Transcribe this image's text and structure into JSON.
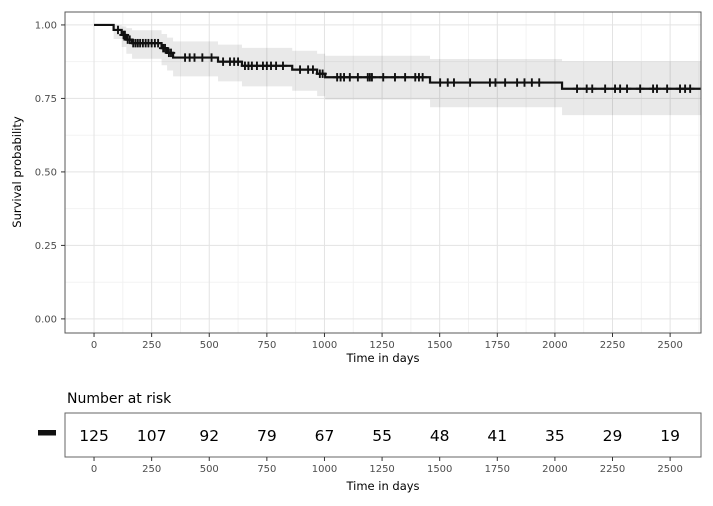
{
  "colors": {
    "curve": "#111111",
    "ci_band": "rgba(0,0,0,0.085)",
    "grid_major": "#e3e3e3",
    "grid_minor": "#f1f1f1",
    "panel_border": "#595959",
    "tick_label": "#4d4d4d",
    "text": "#000000"
  },
  "chart_data": {
    "type": "line",
    "subtype": "kaplan-meier-step",
    "title": "",
    "xlabel": "Time in days",
    "ylabel": "Survival probability",
    "xlim": [
      -126,
      2634
    ],
    "ylim": [
      -0.048,
      1.044
    ],
    "x_ticks": [
      0,
      250,
      500,
      750,
      1000,
      1250,
      1500,
      1750,
      2000,
      2250,
      2500
    ],
    "x_tick_labels": [
      "0",
      "250",
      "500",
      "750",
      "1000",
      "1250",
      "1500",
      "1750",
      "2000",
      "2250",
      "2500"
    ],
    "y_ticks": [
      0,
      0.25,
      0.5,
      0.75,
      1
    ],
    "y_tick_labels": [
      "0.00",
      "0.25",
      "0.50",
      "0.75",
      "1.00"
    ],
    "grid": "major+minor",
    "series": [
      {
        "legend_glyph": "dash",
        "color": "#111111",
        "steps": [
          [
            0,
            1.0
          ],
          [
            85,
            0.983
          ],
          [
            120,
            0.966
          ],
          [
            140,
            0.95
          ],
          [
            165,
            0.938
          ],
          [
            293,
            0.921
          ],
          [
            317,
            0.905
          ],
          [
            343,
            0.889
          ],
          [
            538,
            0.875
          ],
          [
            642,
            0.861
          ],
          [
            860,
            0.848
          ],
          [
            968,
            0.834
          ],
          [
            1003,
            0.822
          ],
          [
            1458,
            0.804
          ],
          [
            2031,
            0.783
          ]
        ],
        "end_day": 2634,
        "censor_days": [
          104,
          128,
          134,
          146,
          155,
          170,
          180,
          190,
          200,
          212,
          224,
          236,
          250,
          264,
          278,
          300,
          308,
          325,
          334,
          395,
          415,
          436,
          470,
          510,
          560,
          590,
          608,
          625,
          655,
          670,
          685,
          707,
          733,
          750,
          768,
          790,
          820,
          894,
          929,
          950,
          980,
          992,
          1055,
          1070,
          1085,
          1110,
          1145,
          1188,
          1197,
          1206,
          1255,
          1306,
          1350,
          1394,
          1410,
          1426,
          1502,
          1535,
          1562,
          1632,
          1718,
          1742,
          1784,
          1836,
          1868,
          1900,
          1932,
          2096,
          2138,
          2162,
          2218,
          2261,
          2283,
          2313,
          2370,
          2426,
          2443,
          2487,
          2543,
          2565,
          2587
        ],
        "ci_upper": [
          [
            85,
            0.999
          ],
          [
            120,
            0.995
          ],
          [
            140,
            0.989
          ],
          [
            165,
            0.982
          ],
          [
            293,
            0.969
          ],
          [
            317,
            0.957
          ],
          [
            343,
            0.944
          ],
          [
            538,
            0.933
          ],
          [
            642,
            0.922
          ],
          [
            860,
            0.912
          ],
          [
            968,
            0.902
          ],
          [
            1003,
            0.895
          ],
          [
            1458,
            0.884
          ],
          [
            2031,
            0.877
          ]
        ],
        "ci_lower": [
          [
            85,
            0.952
          ],
          [
            120,
            0.925
          ],
          [
            140,
            0.902
          ],
          [
            165,
            0.885
          ],
          [
            293,
            0.863
          ],
          [
            317,
            0.845
          ],
          [
            343,
            0.825
          ],
          [
            538,
            0.808
          ],
          [
            642,
            0.791
          ],
          [
            860,
            0.776
          ],
          [
            968,
            0.758
          ],
          [
            1003,
            0.746
          ],
          [
            1458,
            0.72
          ],
          [
            2031,
            0.693
          ]
        ]
      }
    ],
    "risk_table": {
      "title": "Number at risk",
      "xlabel": "Time in days",
      "times": [
        0,
        250,
        500,
        750,
        1000,
        1250,
        1500,
        1750,
        2000,
        2250,
        2500
      ],
      "counts": [
        "125",
        "107",
        "92",
        "79",
        "67",
        "55",
        "48",
        "41",
        "35",
        "29",
        "19"
      ]
    }
  }
}
